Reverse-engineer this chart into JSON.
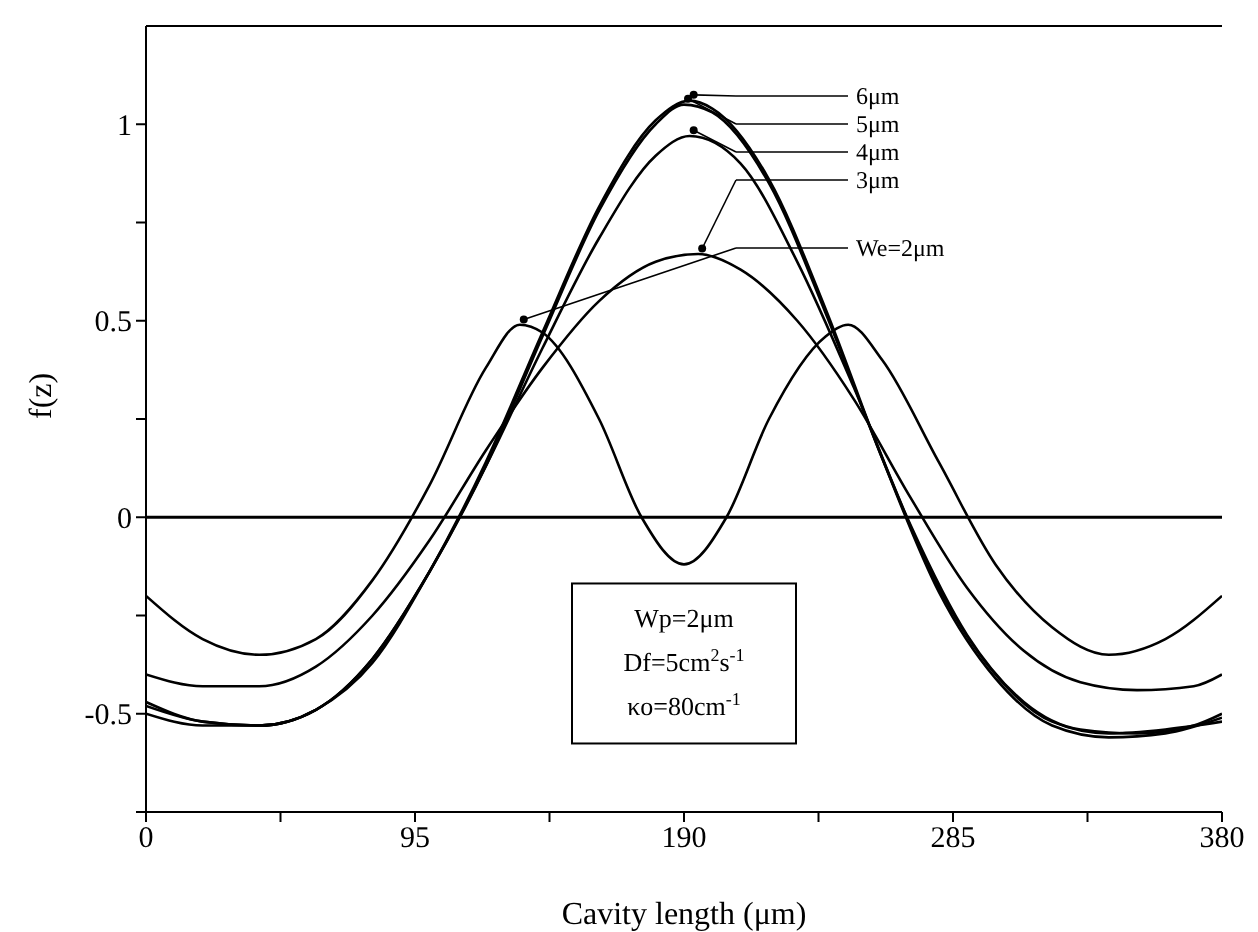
{
  "chart_data": {
    "type": "line",
    "xlabel": "Cavity length  (μm)",
    "ylabel": "f(z)",
    "xlim": [
      0,
      380
    ],
    "xticks": [
      0,
      {
        "value": 47.5,
        "label": null
      },
      95,
      {
        "value": 142.5,
        "label": null
      },
      190,
      {
        "value": 237.5,
        "label": null
      },
      285,
      {
        "value": 332.5,
        "label": null
      },
      380
    ],
    "ylim": [
      -0.75,
      1.25
    ],
    "yticks": [
      {
        "value": -0.75,
        "label": null
      },
      -0.5,
      {
        "value": -0.25,
        "label": null
      },
      0,
      {
        "value": 0.25,
        "label": null
      },
      0.5,
      {
        "value": 0.75,
        "label": null
      },
      1
    ],
    "legend": "top right",
    "marker": "none",
    "line_style": "solid",
    "ref_lines": [
      {
        "axis": "y",
        "value": 0,
        "color": "#000000"
      }
    ],
    "annotations": [
      "Wp=2μm",
      "Df=5cm$^{2}$s$^{-1}$",
      "κo=80cm$^{-1}$"
    ],
    "series": [
      {
        "name": "6μm",
        "color": "#000000",
        "x": [
          0,
          20,
          40,
          60,
          80,
          100,
          120,
          140,
          160,
          180,
          192,
          200,
          220,
          240,
          260,
          280,
          300,
          320,
          340,
          360,
          380
        ],
        "values": [
          -0.5,
          -0.53,
          -0.53,
          -0.49,
          -0.37,
          -0.14,
          0.14,
          0.47,
          0.79,
          1.01,
          1.06,
          1.04,
          0.86,
          0.53,
          0.15,
          -0.19,
          -0.41,
          -0.53,
          -0.56,
          -0.55,
          -0.51
        ]
      },
      {
        "name": "5μm",
        "color": "#000000",
        "x": [
          0,
          20,
          40,
          60,
          80,
          100,
          120,
          140,
          160,
          180,
          190,
          200,
          220,
          240,
          260,
          280,
          300,
          320,
          340,
          360,
          380
        ],
        "values": [
          -0.47,
          -0.52,
          -0.53,
          -0.49,
          -0.36,
          -0.14,
          0.13,
          0.46,
          0.78,
          1.0,
          1.05,
          1.03,
          0.85,
          0.52,
          0.15,
          -0.18,
          -0.4,
          -0.52,
          -0.55,
          -0.54,
          -0.52
        ]
      },
      {
        "name": "4μm",
        "color": "#000000",
        "x": [
          0,
          20,
          40,
          60,
          80,
          100,
          120,
          140,
          160,
          180,
          192,
          210,
          230,
          250,
          270,
          290,
          310,
          330,
          350,
          370,
          380
        ],
        "values": [
          -0.48,
          -0.52,
          -0.53,
          -0.49,
          -0.36,
          -0.14,
          0.13,
          0.43,
          0.71,
          0.92,
          0.97,
          0.9,
          0.65,
          0.33,
          -0.02,
          -0.3,
          -0.47,
          -0.54,
          -0.55,
          -0.53,
          -0.5
        ]
      },
      {
        "name": "3μm",
        "color": "#000000",
        "x": [
          0,
          20,
          40,
          60,
          80,
          100,
          120,
          140,
          160,
          180,
          195,
          210,
          230,
          250,
          270,
          290,
          310,
          330,
          350,
          370,
          380
        ],
        "values": [
          -0.4,
          -0.43,
          -0.43,
          -0.38,
          -0.25,
          -0.06,
          0.17,
          0.38,
          0.55,
          0.65,
          0.67,
          0.63,
          0.5,
          0.3,
          0.05,
          -0.18,
          -0.34,
          -0.42,
          -0.44,
          -0.43,
          -0.4
        ]
      },
      {
        "name": "We=2μm",
        "color": "#000000",
        "x": [
          0,
          20,
          40,
          60,
          80,
          100,
          120,
          132,
          140,
          160,
          175,
          190,
          205,
          220,
          240,
          248,
          260,
          280,
          300,
          320,
          340,
          360,
          380
        ],
        "values": [
          -0.2,
          -0.31,
          -0.35,
          -0.31,
          -0.16,
          0.08,
          0.38,
          0.49,
          0.47,
          0.25,
          0.0,
          -0.12,
          0.0,
          0.25,
          0.46,
          0.49,
          0.4,
          0.14,
          -0.12,
          -0.28,
          -0.35,
          -0.31,
          -0.2
        ]
      }
    ]
  }
}
